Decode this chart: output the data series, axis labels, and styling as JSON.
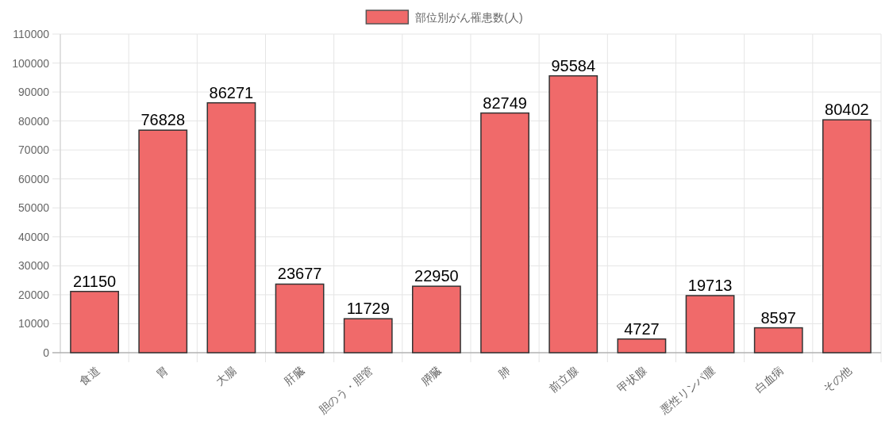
{
  "chart_data": {
    "type": "bar",
    "categories": [
      "食道",
      "胃",
      "大腸",
      "肝臓",
      "胆のう・胆管",
      "膵臓",
      "肺",
      "前立腺",
      "甲状腺",
      "悪性リンパ腫",
      "白血病",
      "その他"
    ],
    "series": [
      {
        "name": "部位別がん罹患数(人)",
        "color": "#f06a6a",
        "values": [
          21150,
          76828,
          86271,
          23677,
          11729,
          22950,
          82749,
          95584,
          4727,
          19713,
          8597,
          80402
        ]
      }
    ],
    "ylim": [
      0,
      110000
    ],
    "yticks": [
      0,
      10000,
      20000,
      30000,
      40000,
      50000,
      60000,
      70000,
      80000,
      90000,
      100000,
      110000
    ],
    "grid": true,
    "legend": "top",
    "data_labels": true
  }
}
